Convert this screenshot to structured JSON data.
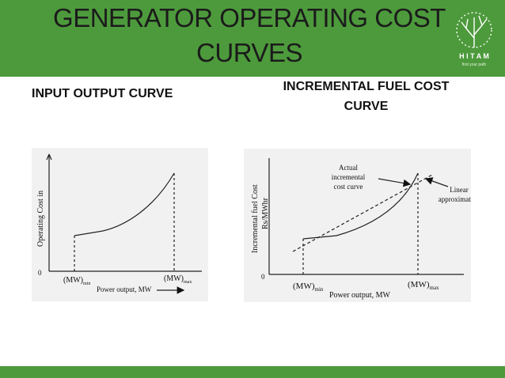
{
  "header": {
    "title_lines": [
      "GENERATOR OPERATING COST",
      "CURVES"
    ],
    "logo_name": "H I T A M",
    "logo_tagline": "first your path"
  },
  "left": {
    "heading": "INPUT OUTPUT CURVE",
    "figure": {
      "y_label": "Operating Cost in",
      "origin": "0",
      "x_min_label": "(MW)",
      "x_min_sub": "min",
      "x_max_label": "(MW)",
      "x_max_sub": "max",
      "x_label": "Power output, MW"
    }
  },
  "right": {
    "heading_lines": [
      "INCREMENTAL FUEL COST",
      "CURVE"
    ],
    "figure": {
      "y_label_lines": [
        "Incremental fuel Cost",
        "Rs/MWhr"
      ],
      "origin": "0",
      "x_min_label": "(MW)",
      "x_min_sub": "min",
      "x_max_label": "(MW)",
      "x_max_sub": "max",
      "x_label": "Power output, MW",
      "curve_note_lines": [
        "Actual",
        "incremental",
        "cost curve"
      ],
      "line_note_lines": [
        "Linear",
        "approximation"
      ]
    }
  }
}
